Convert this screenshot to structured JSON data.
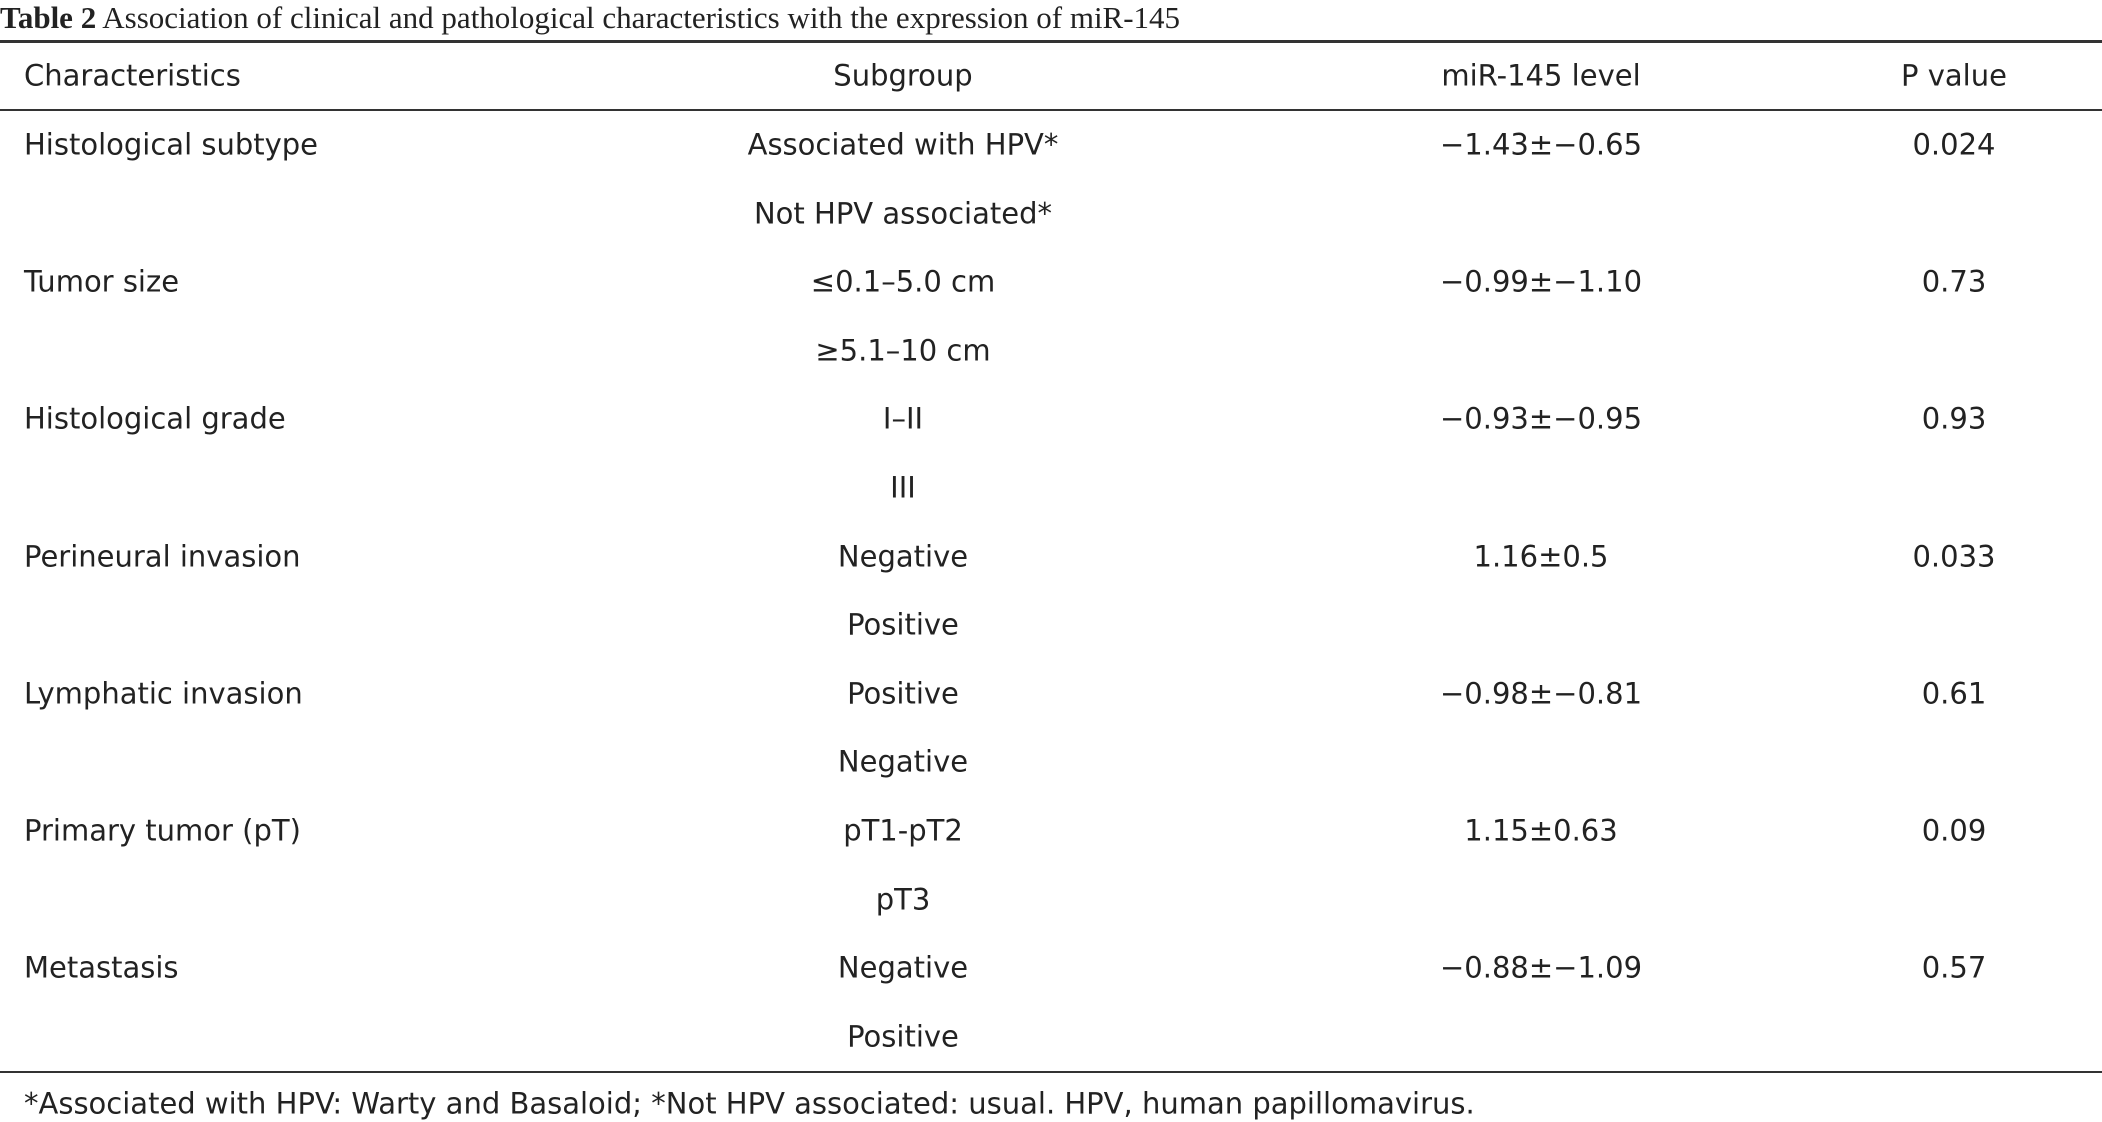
{
  "caption": {
    "label": "Table 2",
    "text": "Association of clinical and pathological characteristics with the expression of miR-145"
  },
  "table": {
    "header": [
      "Characteristics",
      "Subgroup",
      "miR-145 level",
      "P value"
    ],
    "groups": [
      {
        "characteristic": "Histological subtype",
        "subgroups": [
          "Associated with HPV*",
          "Not HPV associated*"
        ],
        "level": "−1.43±−0.65",
        "p": "0.024"
      },
      {
        "characteristic": "Tumor size",
        "subgroups": [
          "≤0.1–5.0 cm",
          "≥5.1–10 cm"
        ],
        "level": "−0.99±−1.10",
        "p": "0.73"
      },
      {
        "characteristic": "Histological grade",
        "subgroups": [
          "I–II",
          "III"
        ],
        "level": "−0.93±−0.95",
        "p": "0.93"
      },
      {
        "characteristic": "Perineural invasion",
        "subgroups": [
          "Negative",
          "Positive"
        ],
        "level": "1.16±0.5",
        "p": "0.033"
      },
      {
        "characteristic": "Lymphatic invasion",
        "subgroups": [
          "Positive",
          "Negative"
        ],
        "level": "−0.98±−0.81",
        "p": "0.61"
      },
      {
        "characteristic": "Primary tumor (pT)",
        "subgroups": [
          "pT1-pT2",
          "pT3"
        ],
        "level": "1.15±0.63",
        "p": "0.09"
      },
      {
        "characteristic": "Metastasis",
        "subgroups": [
          "Negative",
          "Positive"
        ],
        "level": "−0.88±−1.09",
        "p": "0.57"
      }
    ]
  },
  "footnote": "*Associated with HPV: Warty and Basaloid; *Not HPV associated: usual. HPV, human papillomavirus."
}
